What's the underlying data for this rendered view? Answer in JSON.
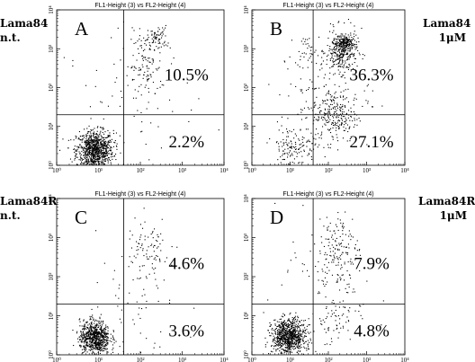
{
  "labels": {
    "A": [
      "Lama84",
      "n.t."
    ],
    "B": [
      "Lama84",
      "1μM"
    ],
    "C": [
      "Lama84R",
      "n.t."
    ],
    "D": [
      "Lama84R",
      "1μM"
    ]
  },
  "chart_data": [
    {
      "type": "scatter",
      "panel": "A",
      "title": "FL1-Height (3) vs FL2-Height (4)",
      "x_scale": "log",
      "y_scale": "log",
      "xlim": [
        1,
        10000
      ],
      "ylim": [
        1,
        10000
      ],
      "tick_labels": [
        "10⁰",
        "10¹",
        "10²",
        "10³",
        "10⁴"
      ],
      "gates": {
        "x": 40,
        "y": 20
      },
      "quadrant_percent": {
        "upper_right": "10.5%",
        "lower_right": "2.2%"
      },
      "clusters": [
        {
          "cx": 8,
          "cy": 2.5,
          "sx": 0.22,
          "sy": 0.25,
          "n": 900
        },
        {
          "cx": 250,
          "cy": 2000,
          "sx": 0.12,
          "sy": 0.15,
          "n": 70
        },
        {
          "cx": 130,
          "cy": 350,
          "sx": 0.2,
          "sy": 0.45,
          "n": 110
        },
        {
          "cx": 60,
          "cy": 60,
          "sx": 0.8,
          "sy": 0.8,
          "n": 60
        }
      ]
    },
    {
      "type": "scatter",
      "panel": "B",
      "title": "FL1-Height (3) vs FL2-Height (4)",
      "x_scale": "log",
      "y_scale": "log",
      "xlim": [
        1,
        10000
      ],
      "ylim": [
        1,
        10000
      ],
      "tick_labels": [
        "10⁰",
        "10¹",
        "10²",
        "10³",
        "10⁴"
      ],
      "gates": {
        "x": 40,
        "y": 20
      },
      "quadrant_percent": {
        "upper_right": "36.3%",
        "lower_right": "27.1%"
      },
      "clusters": [
        {
          "cx": 220,
          "cy": 900,
          "sx": 0.2,
          "sy": 0.28,
          "n": 320
        },
        {
          "cx": 250,
          "cy": 1400,
          "sx": 0.1,
          "sy": 0.08,
          "n": 130
        },
        {
          "cx": 140,
          "cy": 20,
          "sx": 0.3,
          "sy": 0.35,
          "n": 230
        },
        {
          "cx": 12,
          "cy": 3,
          "sx": 0.3,
          "sy": 0.3,
          "n": 150
        },
        {
          "cx": 25,
          "cy": 1000,
          "sx": 0.15,
          "sy": 0.15,
          "n": 30
        },
        {
          "cx": 80,
          "cy": 80,
          "sx": 0.6,
          "sy": 0.6,
          "n": 120
        }
      ]
    },
    {
      "type": "scatter",
      "panel": "C",
      "title": "FL1-Height (3) vs FL2-Height (4)",
      "x_scale": "log",
      "y_scale": "log",
      "xlim": [
        1,
        10000
      ],
      "ylim": [
        1,
        10000
      ],
      "tick_labels": [
        "10⁰",
        "10¹",
        "10²",
        "10³",
        "10⁴"
      ],
      "gates": {
        "x": 40,
        "y": 20
      },
      "quadrant_percent": {
        "upper_right": "4.6%",
        "lower_right": "3.6%"
      },
      "clusters": [
        {
          "cx": 8,
          "cy": 2.8,
          "sx": 0.18,
          "sy": 0.22,
          "n": 750
        },
        {
          "cx": 150,
          "cy": 400,
          "sx": 0.25,
          "sy": 0.45,
          "n": 90
        },
        {
          "cx": 60,
          "cy": 30,
          "sx": 0.8,
          "sy": 0.8,
          "n": 60
        }
      ]
    },
    {
      "type": "scatter",
      "panel": "D",
      "title": "FL1-Height (3) vs FL2-Height (4)",
      "x_scale": "log",
      "y_scale": "log",
      "xlim": [
        1,
        10000
      ],
      "ylim": [
        1,
        10000
      ],
      "tick_labels": [
        "10⁰",
        "10¹",
        "10²",
        "10³",
        "10⁴"
      ],
      "gates": {
        "x": 40,
        "y": 20
      },
      "quadrant_percent": {
        "upper_right": "7.9%",
        "lower_right": "4.8%"
      },
      "clusters": [
        {
          "cx": 9,
          "cy": 3,
          "sx": 0.22,
          "sy": 0.22,
          "n": 850
        },
        {
          "cx": 170,
          "cy": 500,
          "sx": 0.25,
          "sy": 0.5,
          "n": 150
        },
        {
          "cx": 150,
          "cy": 8,
          "sx": 0.3,
          "sy": 0.3,
          "n": 60
        },
        {
          "cx": 60,
          "cy": 40,
          "sx": 0.8,
          "sy": 0.8,
          "n": 70
        }
      ]
    }
  ]
}
